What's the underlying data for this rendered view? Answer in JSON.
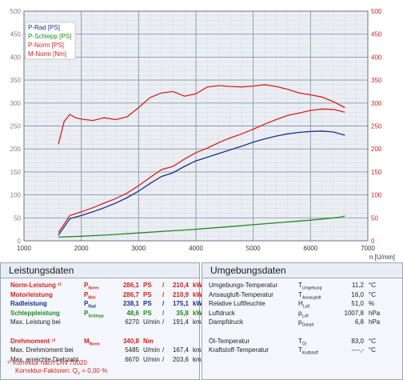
{
  "chart_data": {
    "type": "line",
    "xlabel": "n [U/min]",
    "x_ticks": [
      "1000",
      "2000",
      "3000",
      "4000",
      "5000",
      "6000",
      "7000"
    ],
    "y_left_ticks": [
      "0",
      "50",
      "100",
      "150",
      "200",
      "250",
      "300",
      "350",
      "400",
      "450",
      "500"
    ],
    "y_right_ticks": [
      "0",
      "50",
      "100",
      "150",
      "200",
      "250",
      "300",
      "350",
      "400",
      "450",
      "500"
    ],
    "xlim": [
      1000,
      7000
    ],
    "ylim_left": [
      0,
      500
    ],
    "ylim_right": [
      0,
      500
    ],
    "legend_placement": "top-left",
    "grid": true,
    "series": [
      {
        "name": "P-Rad [PS]",
        "color": "#1a2f8c",
        "x": [
          1600,
          1800,
          2000,
          2200,
          2400,
          2600,
          2800,
          3000,
          3200,
          3400,
          3600,
          3800,
          4000,
          4200,
          4400,
          4600,
          4800,
          5000,
          5200,
          5400,
          5600,
          5800,
          6000,
          6200,
          6400,
          6600
        ],
        "y": [
          12,
          48,
          55,
          63,
          72,
          82,
          94,
          108,
          125,
          140,
          148,
          162,
          174,
          182,
          190,
          198,
          206,
          215,
          222,
          228,
          233,
          236,
          238,
          239,
          237,
          230
        ]
      },
      {
        "name": "P-Schlepp [PS]",
        "color": "#1e8a1e",
        "x": [
          1600,
          2000,
          2500,
          3000,
          3500,
          4000,
          4500,
          5000,
          5500,
          6000,
          6500,
          6600
        ],
        "y": [
          8,
          10,
          13,
          17,
          21,
          25,
          30,
          35,
          40,
          45,
          51,
          54
        ]
      },
      {
        "name": "P-Norm [PS]",
        "color": "#d2231e",
        "x": [
          1600,
          1800,
          2000,
          2200,
          2400,
          2600,
          2800,
          3000,
          3200,
          3400,
          3600,
          3800,
          4000,
          4200,
          4400,
          4600,
          4800,
          5000,
          5200,
          5400,
          5600,
          5800,
          6000,
          6200,
          6400,
          6600
        ],
        "y": [
          18,
          55,
          63,
          72,
          82,
          92,
          104,
          120,
          138,
          155,
          162,
          178,
          192,
          202,
          214,
          224,
          233,
          243,
          254,
          264,
          273,
          278,
          284,
          287,
          286,
          280
        ]
      },
      {
        "name": "M-Norm [Nm]",
        "color": "#d2231e",
        "x": [
          1600,
          1700,
          1800,
          1900,
          2000,
          2200,
          2400,
          2600,
          2800,
          3000,
          3200,
          3400,
          3600,
          3800,
          4000,
          4200,
          4400,
          4600,
          4800,
          5000,
          5200,
          5400,
          5600,
          5800,
          6000,
          6200,
          6400,
          6600
        ],
        "y": [
          210,
          260,
          275,
          268,
          265,
          262,
          268,
          264,
          270,
          290,
          312,
          322,
          325,
          315,
          320,
          335,
          338,
          336,
          335,
          337,
          340,
          336,
          330,
          322,
          318,
          313,
          303,
          290
        ]
      }
    ]
  },
  "left_panel": {
    "title": "Leistungsdaten",
    "rows": [
      {
        "label": "Norm-Leistung ¹⁾",
        "sym": "P",
        "sub": "Norm",
        "v1": "286,1",
        "u1": "PS",
        "sep": "/",
        "v2": "210,4",
        "u2": "kW",
        "cls": "red"
      },
      {
        "label": "Motorleistung",
        "sym": "P",
        "sub": "Mot",
        "v1": "286,7",
        "u1": "PS",
        "sep": "/",
        "v2": "210,9",
        "u2": "kW",
        "cls": "red"
      },
      {
        "label": "Radleistung",
        "sym": "P",
        "sub": "Rad",
        "v1": "238,1",
        "u1": "PS",
        "sep": "/",
        "v2": "175,1",
        "u2": "kW",
        "cls": "blue"
      },
      {
        "label": "Schleppleistung",
        "sym": "P",
        "sub": "Schlepp",
        "v1": "48,6",
        "u1": "PS",
        "sep": "/",
        "v2": "35,8",
        "u2": "kW",
        "cls": "green"
      },
      {
        "label": "Max. Leistung bei",
        "sym": "",
        "sub": "",
        "v1": "6270",
        "u1": "U/min",
        "sep": "/",
        "v2": "191,4",
        "u2": "km/h",
        "cls": "dark"
      },
      {
        "label": "",
        "sym": "",
        "sub": "",
        "v1": "",
        "u1": "",
        "sep": "",
        "v2": "",
        "u2": "",
        "cls": "dark"
      },
      {
        "label": "Drehmoment ¹⁾",
        "sym": "M",
        "sub": "Norm",
        "v1": "340,8",
        "u1": "Nm",
        "sep": "",
        "v2": "",
        "u2": "",
        "cls": "red"
      },
      {
        "label": "Max. Drehmoment bei",
        "sym": "",
        "sub": "",
        "v1": "5485",
        "u1": "U/min",
        "sep": "/",
        "v2": "167,4",
        "u2": "km/h",
        "cls": "dark"
      },
      {
        "label": "Max. erreichte Drehzahl",
        "sym": "",
        "sub": "",
        "v1": "6670",
        "u1": "U/min",
        "sep": "/",
        "v2": "203,6",
        "u2": "km/h",
        "cls": "dark"
      }
    ],
    "note1": "¹⁾ Korrektur nach DIN 70020",
    "note2": "Korrektur-Faktoren: Q",
    "note2_sub": "V",
    "note2_tail": " =    0,00 %"
  },
  "right_panel": {
    "title": "Umgebungsdaten",
    "rows": [
      {
        "label": "Umgebungs-Temperatur",
        "sym": "T",
        "sub": "Umgebung",
        "v": "11,2",
        "u": "°C"
      },
      {
        "label": "Ansaugluft-Temperatur",
        "sym": "T",
        "sub": "Ansaugluft",
        "v": "16,0",
        "u": "°C"
      },
      {
        "label": "Relative Luftfeuchte",
        "sym": "H",
        "sub": "Luft",
        "v": "51,0",
        "u": "%"
      },
      {
        "label": "Luftdruck",
        "sym": "p",
        "sub": "Luft",
        "v": "1007,8",
        "u": "hPa"
      },
      {
        "label": "Dampfdruck",
        "sym": "p",
        "sub": "Dampf",
        "v": "6,8",
        "u": "hPa"
      },
      {
        "label": "",
        "sym": "",
        "sub": "",
        "v": "",
        "u": ""
      },
      {
        "label": "Öl-Temperatur",
        "sym": "T",
        "sub": "Öl",
        "v": "83,0",
        "u": "°C"
      },
      {
        "label": "Kraftstoff-Temperatur",
        "sym": "T",
        "sub": "Kraftstoff",
        "v": "----,-",
        "u": "°C"
      }
    ]
  }
}
